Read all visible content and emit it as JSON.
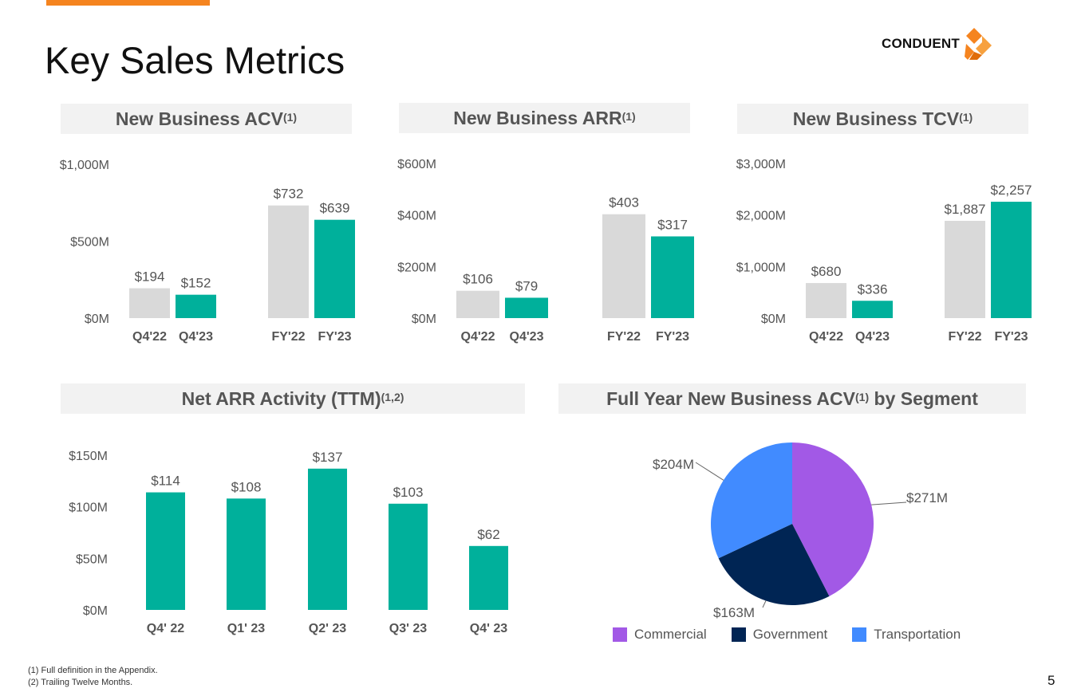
{
  "slide": {
    "title": "Key Sales Metrics",
    "logo_text": "CONDUENT",
    "page_number": "5",
    "footnotes": [
      "(1) Full definition in the Appendix.",
      "(2) Trailing Twelve Months."
    ]
  },
  "colors": {
    "accent": "#f5841f",
    "teal": "#00b09b",
    "prior": "#d9d9d9",
    "commercial": "#a259e6",
    "government": "#002554",
    "transportation": "#418bff"
  },
  "chart_data": [
    {
      "type": "bar",
      "title": "New Business ACV",
      "title_sup": "(1)",
      "categories": [
        "Q4'22",
        "Q4'23",
        "FY'22",
        "FY'23"
      ],
      "values": [
        194,
        152,
        732,
        639
      ],
      "value_labels": [
        "$194",
        "$152",
        "$732",
        "$639"
      ],
      "ylim": [
        0,
        1000
      ],
      "yticks": [
        0,
        500,
        1000
      ],
      "ytick_labels": [
        "$0M",
        "$500M",
        "$1,000M"
      ]
    },
    {
      "type": "bar",
      "title": "New Business ARR",
      "title_sup": "(1)",
      "categories": [
        "Q4'22",
        "Q4'23",
        "FY'22",
        "FY'23"
      ],
      "values": [
        106,
        79,
        403,
        317
      ],
      "value_labels": [
        "$106",
        "$79",
        "$403",
        "$317"
      ],
      "ylim": [
        0,
        600
      ],
      "yticks": [
        0,
        200,
        400,
        600
      ],
      "ytick_labels": [
        "$0M",
        "$200M",
        "$400M",
        "$600M"
      ]
    },
    {
      "type": "bar",
      "title": "New Business TCV",
      "title_sup": "(1)",
      "categories": [
        "Q4'22",
        "Q4'23",
        "FY'22",
        "FY'23"
      ],
      "values": [
        680,
        336,
        1887,
        2257
      ],
      "value_labels": [
        "$680",
        "$336",
        "$1,887",
        "$2,257"
      ],
      "ylim": [
        0,
        3000
      ],
      "yticks": [
        0,
        1000,
        2000,
        3000
      ],
      "ytick_labels": [
        "$0M",
        "$1,000M",
        "$2,000M",
        "$3,000M"
      ]
    },
    {
      "type": "bar",
      "title": "Net ARR Activity (TTM)",
      "title_sup": "(1,2)",
      "categories": [
        "Q4' 22",
        "Q1' 23",
        "Q2' 23",
        "Q3' 23",
        "Q4' 23"
      ],
      "values": [
        114,
        108,
        137,
        103,
        62
      ],
      "value_labels": [
        "$114",
        "$108",
        "$137",
        "$103",
        "$62"
      ],
      "ylim": [
        0,
        150
      ],
      "yticks": [
        0,
        50,
        100,
        150
      ],
      "ytick_labels": [
        "$0M",
        "$50M",
        "$100M",
        "$150M"
      ]
    },
    {
      "type": "pie",
      "title": "Full Year New Business ACV",
      "title_sup": "(1)",
      "title_suffix": " by Segment",
      "labels": [
        "Commercial",
        "Government",
        "Transportation"
      ],
      "values": [
        271,
        163,
        204
      ],
      "value_labels": [
        "$271M",
        "$163M",
        "$204M"
      ]
    }
  ]
}
